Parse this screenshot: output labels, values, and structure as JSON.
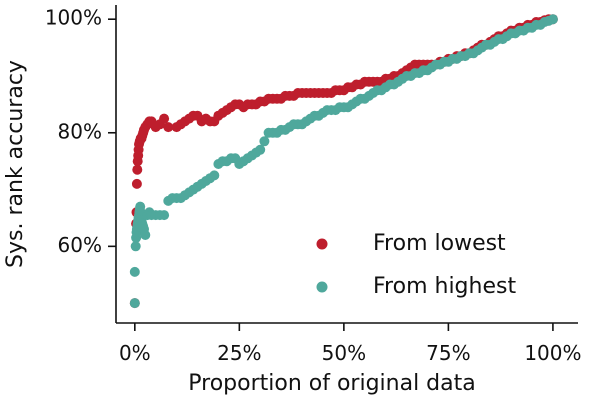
{
  "chart_data": {
    "type": "scatter",
    "title": "",
    "xlabel": "Proportion of original data",
    "ylabel": "Sys. rank accuracy",
    "xlim": [
      -0.045,
      1.06
    ],
    "ylim": [
      0.465,
      1.025
    ],
    "x_ticks": [
      0,
      0.25,
      0.5,
      0.75,
      1.0
    ],
    "x_tick_labels": [
      "0%",
      "25%",
      "50%",
      "75%",
      "100%"
    ],
    "y_ticks": [
      0.6,
      0.8,
      1.0
    ],
    "y_tick_labels": [
      "60%",
      "80%",
      "100%"
    ],
    "grid": false,
    "legend_position": "lower-right",
    "series": [
      {
        "name": "From lowest",
        "color": "#be1e2d",
        "points": [
          [
            0.0,
            0.5
          ],
          [
            0.003,
            0.64
          ],
          [
            0.004,
            0.66
          ],
          [
            0.005,
            0.71
          ],
          [
            0.006,
            0.735
          ],
          [
            0.007,
            0.75
          ],
          [
            0.008,
            0.76
          ],
          [
            0.009,
            0.77
          ],
          [
            0.01,
            0.78
          ],
          [
            0.012,
            0.785
          ],
          [
            0.014,
            0.79
          ],
          [
            0.016,
            0.79
          ],
          [
            0.018,
            0.795
          ],
          [
            0.02,
            0.8
          ],
          [
            0.022,
            0.805
          ],
          [
            0.025,
            0.81
          ],
          [
            0.03,
            0.815
          ],
          [
            0.035,
            0.82
          ],
          [
            0.04,
            0.82
          ],
          [
            0.05,
            0.81
          ],
          [
            0.06,
            0.815
          ],
          [
            0.07,
            0.825
          ],
          [
            0.08,
            0.81
          ],
          [
            0.1,
            0.81
          ],
          [
            0.11,
            0.815
          ],
          [
            0.12,
            0.82
          ],
          [
            0.13,
            0.825
          ],
          [
            0.14,
            0.83
          ],
          [
            0.15,
            0.83
          ],
          [
            0.16,
            0.82
          ],
          [
            0.17,
            0.825
          ],
          [
            0.18,
            0.82
          ],
          [
            0.19,
            0.82
          ],
          [
            0.2,
            0.83
          ],
          [
            0.21,
            0.835
          ],
          [
            0.22,
            0.84
          ],
          [
            0.23,
            0.845
          ],
          [
            0.24,
            0.85
          ],
          [
            0.25,
            0.85
          ],
          [
            0.26,
            0.845
          ],
          [
            0.27,
            0.85
          ],
          [
            0.28,
            0.85
          ],
          [
            0.29,
            0.85
          ],
          [
            0.3,
            0.855
          ],
          [
            0.31,
            0.855
          ],
          [
            0.32,
            0.86
          ],
          [
            0.33,
            0.86
          ],
          [
            0.34,
            0.86
          ],
          [
            0.35,
            0.86
          ],
          [
            0.36,
            0.865
          ],
          [
            0.37,
            0.865
          ],
          [
            0.38,
            0.865
          ],
          [
            0.39,
            0.87
          ],
          [
            0.4,
            0.87
          ],
          [
            0.41,
            0.87
          ],
          [
            0.42,
            0.87
          ],
          [
            0.43,
            0.87
          ],
          [
            0.44,
            0.87
          ],
          [
            0.45,
            0.87
          ],
          [
            0.46,
            0.87
          ],
          [
            0.47,
            0.87
          ],
          [
            0.48,
            0.875
          ],
          [
            0.49,
            0.875
          ],
          [
            0.5,
            0.875
          ],
          [
            0.51,
            0.88
          ],
          [
            0.52,
            0.88
          ],
          [
            0.53,
            0.885
          ],
          [
            0.54,
            0.885
          ],
          [
            0.55,
            0.89
          ],
          [
            0.56,
            0.89
          ],
          [
            0.57,
            0.89
          ],
          [
            0.58,
            0.89
          ],
          [
            0.59,
            0.89
          ],
          [
            0.6,
            0.895
          ],
          [
            0.61,
            0.895
          ],
          [
            0.62,
            0.9
          ],
          [
            0.63,
            0.9
          ],
          [
            0.64,
            0.905
          ],
          [
            0.65,
            0.91
          ],
          [
            0.66,
            0.915
          ],
          [
            0.67,
            0.92
          ],
          [
            0.68,
            0.92
          ],
          [
            0.69,
            0.92
          ],
          [
            0.7,
            0.92
          ],
          [
            0.71,
            0.92
          ],
          [
            0.72,
            0.92
          ],
          [
            0.73,
            0.925
          ],
          [
            0.74,
            0.925
          ],
          [
            0.75,
            0.93
          ],
          [
            0.76,
            0.93
          ],
          [
            0.77,
            0.935
          ],
          [
            0.78,
            0.935
          ],
          [
            0.79,
            0.94
          ],
          [
            0.8,
            0.94
          ],
          [
            0.81,
            0.945
          ],
          [
            0.82,
            0.95
          ],
          [
            0.83,
            0.955
          ],
          [
            0.84,
            0.955
          ],
          [
            0.85,
            0.96
          ],
          [
            0.86,
            0.965
          ],
          [
            0.87,
            0.97
          ],
          [
            0.88,
            0.97
          ],
          [
            0.89,
            0.975
          ],
          [
            0.9,
            0.98
          ],
          [
            0.91,
            0.98
          ],
          [
            0.92,
            0.985
          ],
          [
            0.93,
            0.985
          ],
          [
            0.94,
            0.99
          ],
          [
            0.95,
            0.99
          ],
          [
            0.96,
            0.995
          ],
          [
            0.97,
            0.995
          ],
          [
            0.98,
            0.998
          ],
          [
            0.99,
            1.0
          ],
          [
            1.0,
            1.0
          ]
        ]
      },
      {
        "name": "From highest",
        "color": "#4fa89c",
        "points": [
          [
            0.0,
            0.5
          ],
          [
            0.0,
            0.555
          ],
          [
            0.002,
            0.6
          ],
          [
            0.003,
            0.615
          ],
          [
            0.004,
            0.625
          ],
          [
            0.005,
            0.63
          ],
          [
            0.006,
            0.635
          ],
          [
            0.007,
            0.64
          ],
          [
            0.008,
            0.645
          ],
          [
            0.009,
            0.65
          ],
          [
            0.01,
            0.655
          ],
          [
            0.011,
            0.66
          ],
          [
            0.012,
            0.665
          ],
          [
            0.013,
            0.67
          ],
          [
            0.014,
            0.66
          ],
          [
            0.015,
            0.65
          ],
          [
            0.016,
            0.645
          ],
          [
            0.018,
            0.64
          ],
          [
            0.02,
            0.635
          ],
          [
            0.022,
            0.63
          ],
          [
            0.025,
            0.62
          ],
          [
            0.03,
            0.655
          ],
          [
            0.035,
            0.66
          ],
          [
            0.04,
            0.655
          ],
          [
            0.05,
            0.655
          ],
          [
            0.06,
            0.655
          ],
          [
            0.07,
            0.655
          ],
          [
            0.08,
            0.68
          ],
          [
            0.09,
            0.685
          ],
          [
            0.1,
            0.685
          ],
          [
            0.11,
            0.685
          ],
          [
            0.12,
            0.69
          ],
          [
            0.13,
            0.695
          ],
          [
            0.14,
            0.7
          ],
          [
            0.15,
            0.705
          ],
          [
            0.16,
            0.71
          ],
          [
            0.17,
            0.715
          ],
          [
            0.18,
            0.72
          ],
          [
            0.19,
            0.725
          ],
          [
            0.2,
            0.745
          ],
          [
            0.21,
            0.75
          ],
          [
            0.22,
            0.75
          ],
          [
            0.23,
            0.755
          ],
          [
            0.24,
            0.755
          ],
          [
            0.25,
            0.745
          ],
          [
            0.26,
            0.75
          ],
          [
            0.27,
            0.755
          ],
          [
            0.28,
            0.76
          ],
          [
            0.29,
            0.765
          ],
          [
            0.3,
            0.77
          ],
          [
            0.31,
            0.785
          ],
          [
            0.32,
            0.8
          ],
          [
            0.33,
            0.8
          ],
          [
            0.34,
            0.8
          ],
          [
            0.35,
            0.805
          ],
          [
            0.36,
            0.805
          ],
          [
            0.37,
            0.81
          ],
          [
            0.38,
            0.815
          ],
          [
            0.39,
            0.815
          ],
          [
            0.4,
            0.815
          ],
          [
            0.41,
            0.82
          ],
          [
            0.42,
            0.825
          ],
          [
            0.43,
            0.83
          ],
          [
            0.44,
            0.83
          ],
          [
            0.45,
            0.835
          ],
          [
            0.46,
            0.84
          ],
          [
            0.47,
            0.84
          ],
          [
            0.48,
            0.84
          ],
          [
            0.49,
            0.845
          ],
          [
            0.5,
            0.845
          ],
          [
            0.51,
            0.845
          ],
          [
            0.52,
            0.85
          ],
          [
            0.53,
            0.855
          ],
          [
            0.54,
            0.86
          ],
          [
            0.55,
            0.86
          ],
          [
            0.56,
            0.865
          ],
          [
            0.57,
            0.87
          ],
          [
            0.58,
            0.875
          ],
          [
            0.59,
            0.875
          ],
          [
            0.6,
            0.88
          ],
          [
            0.61,
            0.885
          ],
          [
            0.62,
            0.885
          ],
          [
            0.63,
            0.89
          ],
          [
            0.64,
            0.895
          ],
          [
            0.65,
            0.9
          ],
          [
            0.66,
            0.9
          ],
          [
            0.67,
            0.905
          ],
          [
            0.68,
            0.905
          ],
          [
            0.69,
            0.91
          ],
          [
            0.7,
            0.91
          ],
          [
            0.71,
            0.915
          ],
          [
            0.72,
            0.92
          ],
          [
            0.73,
            0.92
          ],
          [
            0.74,
            0.925
          ],
          [
            0.75,
            0.925
          ],
          [
            0.76,
            0.93
          ],
          [
            0.77,
            0.93
          ],
          [
            0.78,
            0.935
          ],
          [
            0.79,
            0.935
          ],
          [
            0.8,
            0.94
          ],
          [
            0.81,
            0.94
          ],
          [
            0.82,
            0.945
          ],
          [
            0.83,
            0.95
          ],
          [
            0.84,
            0.955
          ],
          [
            0.85,
            0.955
          ],
          [
            0.86,
            0.96
          ],
          [
            0.87,
            0.965
          ],
          [
            0.88,
            0.965
          ],
          [
            0.89,
            0.97
          ],
          [
            0.9,
            0.975
          ],
          [
            0.91,
            0.975
          ],
          [
            0.92,
            0.98
          ],
          [
            0.93,
            0.98
          ],
          [
            0.94,
            0.985
          ],
          [
            0.95,
            0.985
          ],
          [
            0.96,
            0.99
          ],
          [
            0.97,
            0.99
          ],
          [
            0.98,
            0.995
          ],
          [
            0.99,
            0.997
          ],
          [
            1.0,
            1.0
          ]
        ]
      }
    ]
  }
}
